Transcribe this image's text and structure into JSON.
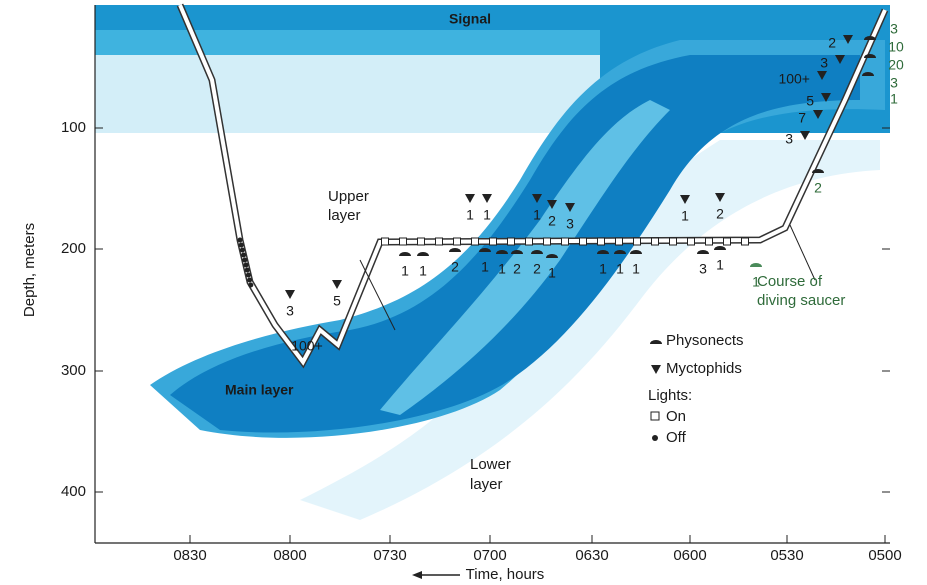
{
  "header": {
    "signal": "Signal"
  },
  "axes": {
    "y_label": "Depth, meters",
    "y_ticks": [
      "100",
      "200",
      "300",
      "400"
    ],
    "x_label": "Time, hours",
    "x_ticks": [
      "0830",
      "0800",
      "0730",
      "0700",
      "0630",
      "0600",
      "0530",
      "0500"
    ]
  },
  "layers": {
    "upper": [
      "Upper",
      "layer"
    ],
    "main": "Main layer",
    "lower": [
      "Lower",
      "layer"
    ]
  },
  "course": [
    "Course of",
    "diving saucer"
  ],
  "legend": {
    "physonects": "Physonects",
    "myctophids": "Myctophids",
    "lights": "Lights:",
    "on": "On",
    "off": "Off"
  },
  "counts": [
    "3",
    "10",
    "20",
    "3",
    "1",
    "2",
    "3",
    "100+",
    "5",
    "7",
    "3",
    "2",
    "1",
    "1",
    "2",
    "1",
    "1",
    "2",
    "2",
    "1",
    "1",
    "1",
    "1",
    "3",
    "1",
    "1",
    "1",
    "1",
    "1",
    "2",
    "3",
    "1",
    "2",
    "3",
    "5",
    "100+"
  ]
}
